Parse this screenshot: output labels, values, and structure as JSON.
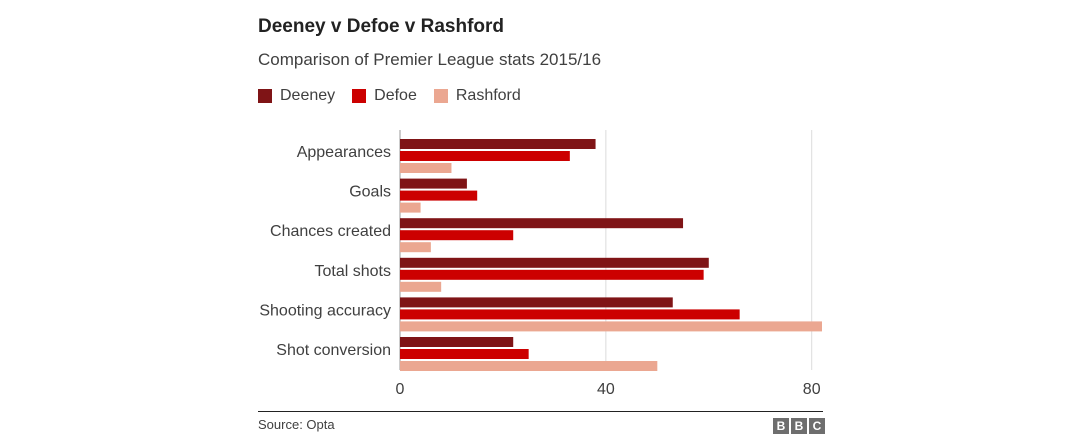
{
  "title": "Deeney v Defoe v Rashford",
  "subtitle": "Comparison of Premier League stats 2015/16",
  "source": "Source: Opta",
  "logo": [
    "B",
    "B",
    "C"
  ],
  "chart_data": {
    "type": "bar",
    "orientation": "horizontal",
    "categories": [
      "Appearances",
      "Goals",
      "Chances created",
      "Total shots",
      "Shooting accuracy",
      "Shot conversion"
    ],
    "series": [
      {
        "name": "Deeney",
        "color": "#7f1416",
        "values": [
          38,
          13,
          55,
          60,
          53,
          22
        ]
      },
      {
        "name": "Defoe",
        "color": "#cc0000",
        "values": [
          33,
          15,
          22,
          59,
          66,
          25
        ]
      },
      {
        "name": "Rashford",
        "color": "#eba791",
        "values": [
          10,
          4,
          6,
          8,
          82,
          50
        ]
      }
    ],
    "xlim": [
      0,
      82
    ],
    "xticks": [
      0,
      40,
      80
    ],
    "grid": true,
    "legend": "top-left"
  }
}
